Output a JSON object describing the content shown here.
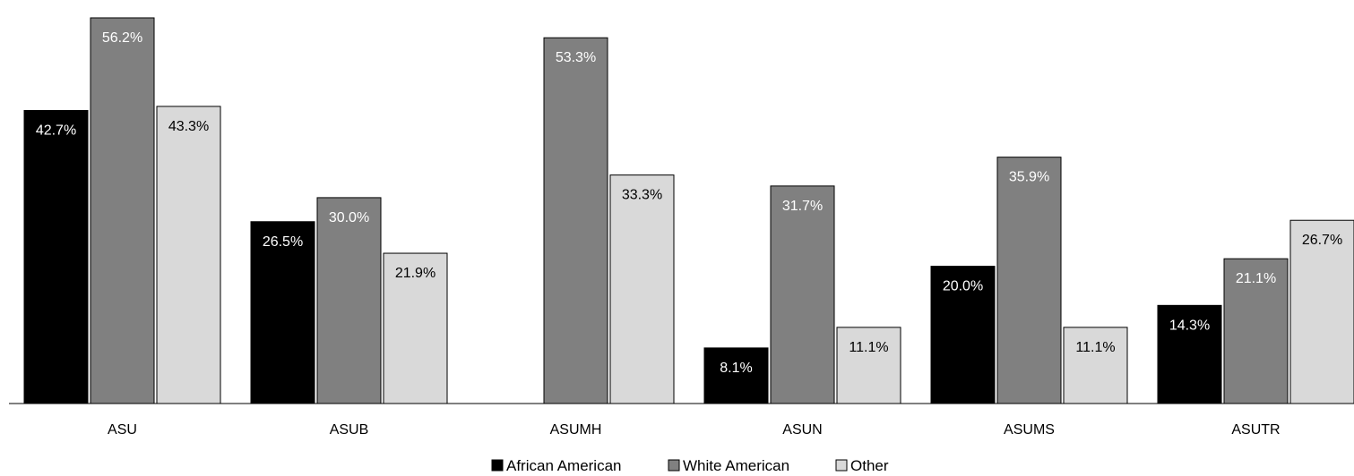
{
  "chart_data": {
    "type": "bar",
    "title": "",
    "xlabel": "",
    "ylabel": "",
    "ylim": [
      0,
      57.5
    ],
    "grid": false,
    "legend_position": "bottom",
    "categories": [
      "ASU",
      "ASUB",
      "ASUMH",
      "ASUN",
      "ASUMS",
      "ASUTR"
    ],
    "series": [
      {
        "name": "African American",
        "color": "#000000",
        "label_color": "#ffffff",
        "values": [
          42.7,
          26.5,
          null,
          8.1,
          20.0,
          14.3
        ],
        "labels": [
          "42.7%",
          "26.5%",
          "",
          "8.1%",
          "20.0%",
          "14.3%"
        ]
      },
      {
        "name": "White American",
        "color": "#808080",
        "label_color": "#ffffff",
        "values": [
          56.2,
          30.0,
          53.3,
          31.7,
          35.9,
          21.1
        ],
        "labels": [
          "56.2%",
          "30.0%",
          "53.3%",
          "31.7%",
          "35.9%",
          "21.1%"
        ]
      },
      {
        "name": "Other",
        "color": "#d9d9d9",
        "label_color": "#000000",
        "values": [
          43.3,
          21.9,
          33.3,
          11.1,
          11.1,
          26.7
        ],
        "labels": [
          "43.3%",
          "21.9%",
          "33.3%",
          "11.1%",
          "11.1%",
          "26.7%"
        ]
      }
    ]
  }
}
